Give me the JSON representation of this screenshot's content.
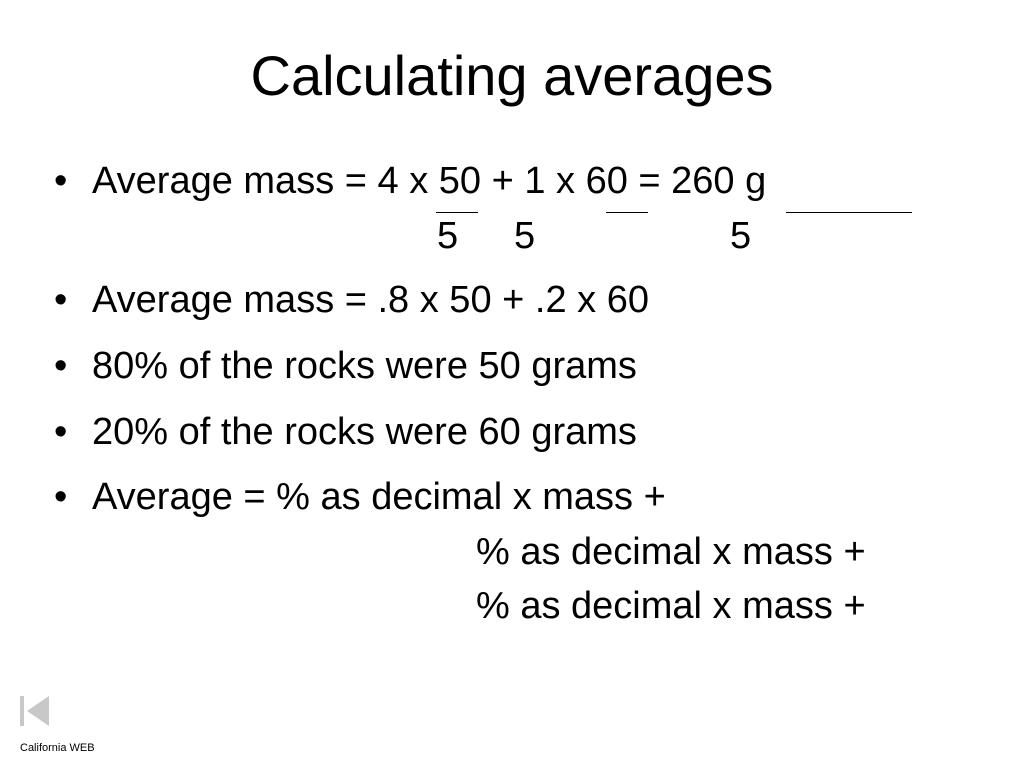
{
  "slide": {
    "title": "Calculating averages",
    "bullet_char": "•",
    "line1": {
      "text": "Average mass = 4 x 50 + 1 x 60 = 260 g",
      "denominators": [
        "5",
        "5",
        "5"
      ]
    },
    "line2": {
      "text": "Average mass = .8 x 50 + .2 x 60"
    },
    "line3": {
      "text": "80% of the rocks were 50 grams"
    },
    "line4": {
      "text": "20% of the rocks were 60 grams"
    },
    "line5": {
      "text": "Average = % as decimal x mass +",
      "continuation": [
        "% as decimal x mass +",
        "% as decimal x mass +"
      ]
    }
  },
  "footer": {
    "text": "California WEB",
    "nav_icon": "previous-slide-icon",
    "nav_color": "#c8c8c8"
  }
}
